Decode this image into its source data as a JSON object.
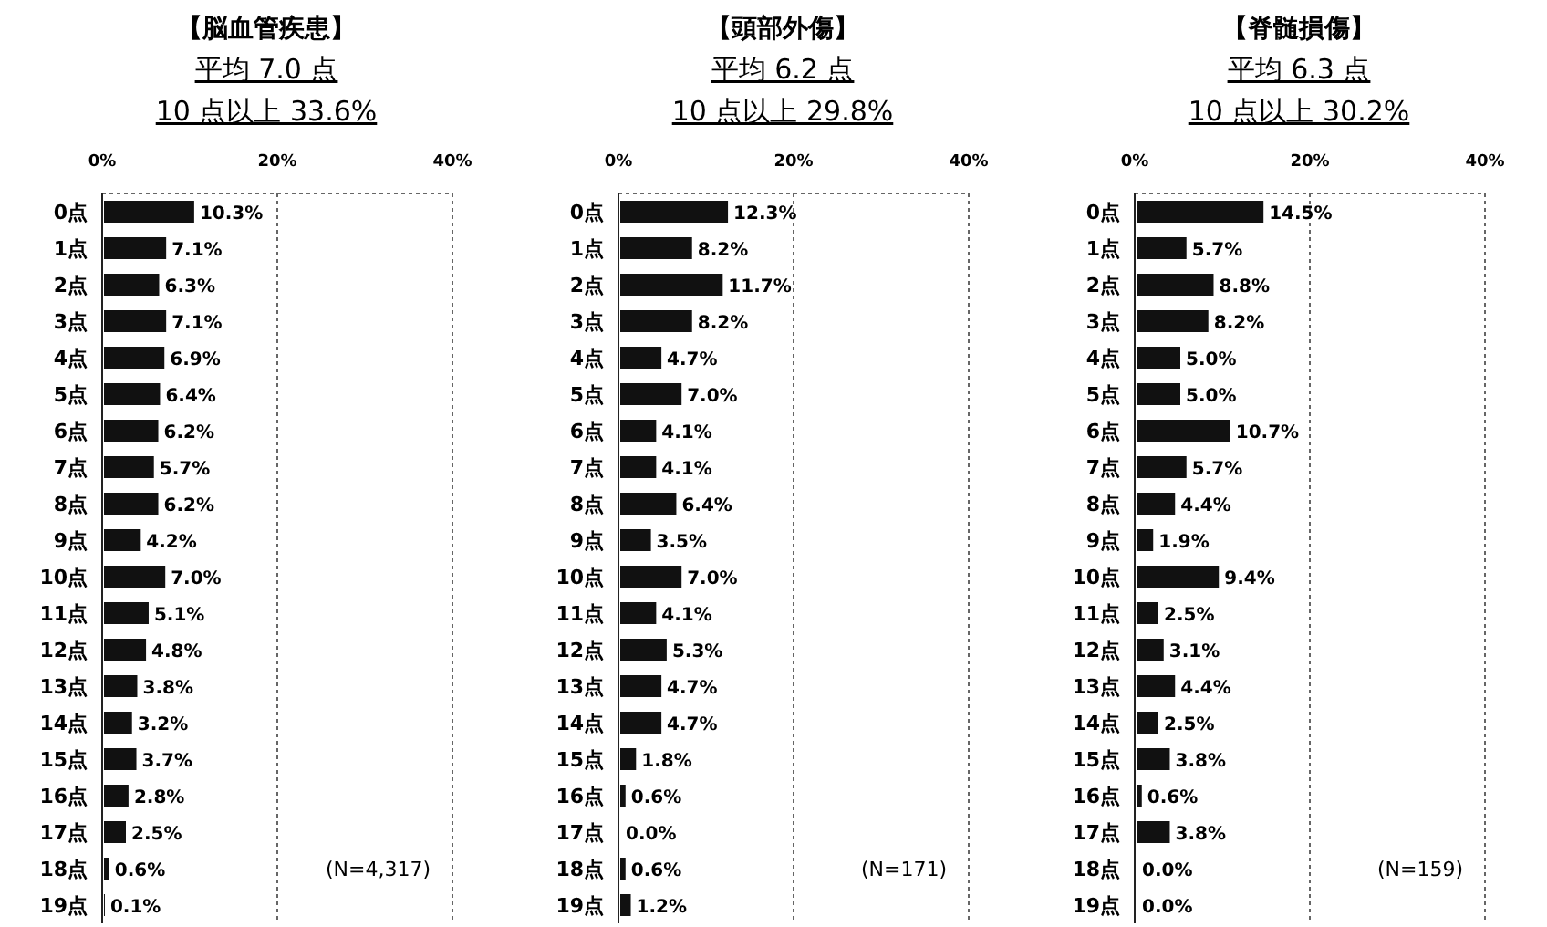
{
  "chart_data": [
    {
      "type": "bar",
      "orientation": "horizontal",
      "title": "【脳血管疾患】",
      "subtitle": "平均 7.0 点",
      "annotations": [
        "10 点以上  33.6%",
        "(N=4,317)"
      ],
      "categories": [
        "0点",
        "1点",
        "2点",
        "3点",
        "4点",
        "5点",
        "6点",
        "7点",
        "8点",
        "9点",
        "10点",
        "11点",
        "12点",
        "13点",
        "14点",
        "15点",
        "16点",
        "17点",
        "18点",
        "19点"
      ],
      "values": [
        10.3,
        7.1,
        6.3,
        7.1,
        6.9,
        6.4,
        6.2,
        5.7,
        6.2,
        4.2,
        7.0,
        5.1,
        4.8,
        3.8,
        3.2,
        3.7,
        2.8,
        2.5,
        0.6,
        0.1
      ],
      "value_labels": [
        "10.3%",
        "7.1%",
        "6.3%",
        "7.1%",
        "6.9%",
        "6.4%",
        "6.2%",
        "5.7%",
        "6.2%",
        "4.2%",
        "7.0%",
        "5.1%",
        "4.8%",
        "3.8%",
        "3.2%",
        "3.7%",
        "2.8%",
        "2.5%",
        "0.6%",
        "0.1%"
      ],
      "color": "#111111",
      "xlim": [
        0,
        40
      ],
      "xticks": [
        {
          "value": 0,
          "label": "0%"
        },
        {
          "value": 20,
          "label": "20%"
        },
        {
          "value": 40,
          "label": "40%"
        }
      ],
      "grid": "x"
    },
    {
      "type": "bar",
      "orientation": "horizontal",
      "title": "【頭部外傷】",
      "subtitle": "平均 6.2 点",
      "annotations": [
        "10 点以上  29.8%",
        "(N=171)"
      ],
      "categories": [
        "0点",
        "1点",
        "2点",
        "3点",
        "4点",
        "5点",
        "6点",
        "7点",
        "8点",
        "9点",
        "10点",
        "11点",
        "12点",
        "13点",
        "14点",
        "15点",
        "16点",
        "17点",
        "18点",
        "19点"
      ],
      "values": [
        12.3,
        8.2,
        11.7,
        8.2,
        4.7,
        7.0,
        4.1,
        4.1,
        6.4,
        3.5,
        7.0,
        4.1,
        5.3,
        4.7,
        4.7,
        1.8,
        0.6,
        0.0,
        0.6,
        1.2
      ],
      "value_labels": [
        "12.3%",
        "8.2%",
        "11.7%",
        "8.2%",
        "4.7%",
        "7.0%",
        "4.1%",
        "4.1%",
        "6.4%",
        "3.5%",
        "7.0%",
        "4.1%",
        "5.3%",
        "4.7%",
        "4.7%",
        "1.8%",
        "0.6%",
        "0.0%",
        "0.6%",
        "1.2%"
      ],
      "color": "#111111",
      "xlim": [
        0,
        40
      ],
      "xticks": [
        {
          "value": 0,
          "label": "0%"
        },
        {
          "value": 20,
          "label": "20%"
        },
        {
          "value": 40,
          "label": "40%"
        }
      ],
      "grid": "x"
    },
    {
      "type": "bar",
      "orientation": "horizontal",
      "title": "【脊髄損傷】",
      "subtitle": "平均 6.3 点",
      "annotations": [
        "10 点以上  30.2%",
        "(N=159)"
      ],
      "categories": [
        "0点",
        "1点",
        "2点",
        "3点",
        "4点",
        "5点",
        "6点",
        "7点",
        "8点",
        "9点",
        "10点",
        "11点",
        "12点",
        "13点",
        "14点",
        "15点",
        "16点",
        "17点",
        "18点",
        "19点"
      ],
      "values": [
        14.5,
        5.7,
        8.8,
        8.2,
        5.0,
        5.0,
        10.7,
        5.7,
        4.4,
        1.9,
        9.4,
        2.5,
        3.1,
        4.4,
        2.5,
        3.8,
        0.6,
        3.8,
        0.0,
        0.0
      ],
      "value_labels": [
        "14.5%",
        "5.7%",
        "8.8%",
        "8.2%",
        "5.0%",
        "5.0%",
        "10.7%",
        "5.7%",
        "4.4%",
        "1.9%",
        "9.4%",
        "2.5%",
        "3.1%",
        "4.4%",
        "2.5%",
        "3.8%",
        "0.6%",
        "3.8%",
        "0.0%",
        "0.0%"
      ],
      "color": "#111111",
      "xlim": [
        0,
        40
      ],
      "xticks": [
        {
          "value": 0,
          "label": "0%"
        },
        {
          "value": 20,
          "label": "20%"
        },
        {
          "value": 40,
          "label": "40%"
        }
      ],
      "grid": "x"
    }
  ]
}
